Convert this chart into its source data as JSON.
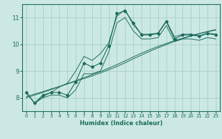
{
  "xlabel": "Humidex (Indice chaleur)",
  "x": [
    0,
    1,
    2,
    3,
    4,
    5,
    6,
    7,
    8,
    9,
    10,
    11,
    12,
    13,
    14,
    15,
    16,
    17,
    18,
    19,
    20,
    21,
    22,
    23
  ],
  "y_main": [
    8.2,
    7.8,
    8.1,
    8.2,
    8.2,
    8.1,
    8.6,
    9.3,
    9.15,
    9.3,
    9.95,
    11.15,
    11.25,
    10.8,
    10.35,
    10.35,
    10.4,
    10.85,
    10.2,
    10.35,
    10.35,
    10.3,
    10.4,
    10.35
  ],
  "y_upper": [
    8.2,
    7.8,
    8.05,
    8.2,
    8.4,
    8.55,
    9.0,
    9.55,
    9.4,
    9.65,
    10.05,
    11.05,
    11.3,
    10.72,
    10.38,
    10.38,
    10.42,
    10.88,
    10.28,
    10.38,
    10.38,
    10.32,
    10.42,
    10.38
  ],
  "y_lower": [
    8.2,
    7.8,
    8.0,
    8.1,
    8.1,
    8.0,
    8.3,
    8.9,
    8.9,
    9.0,
    9.7,
    10.8,
    11.0,
    10.5,
    10.2,
    10.2,
    10.25,
    10.7,
    10.1,
    10.2,
    10.2,
    10.15,
    10.25,
    10.2
  ],
  "y_trend1": [
    8.05,
    8.14,
    8.23,
    8.33,
    8.42,
    8.52,
    8.62,
    8.72,
    8.82,
    8.93,
    9.05,
    9.17,
    9.31,
    9.46,
    9.6,
    9.74,
    9.87,
    9.99,
    10.11,
    10.21,
    10.31,
    10.4,
    10.48,
    10.55
  ],
  "y_trend2": [
    8.0,
    8.1,
    8.2,
    8.31,
    8.42,
    8.53,
    8.64,
    8.75,
    8.87,
    8.98,
    9.11,
    9.24,
    9.38,
    9.53,
    9.67,
    9.8,
    9.92,
    10.03,
    10.14,
    10.23,
    10.32,
    10.4,
    10.47,
    10.53
  ],
  "line_color": "#1a6b5a",
  "bg_color": "#cce8e4",
  "grid_color": "#9dcac4",
  "ylim": [
    7.5,
    11.5
  ],
  "xlim": [
    -0.5,
    23.5
  ],
  "yticks": [
    8,
    9,
    10,
    11
  ],
  "xticks": [
    0,
    1,
    2,
    3,
    4,
    5,
    6,
    7,
    8,
    9,
    10,
    11,
    12,
    13,
    14,
    15,
    16,
    17,
    18,
    19,
    20,
    21,
    22,
    23
  ]
}
